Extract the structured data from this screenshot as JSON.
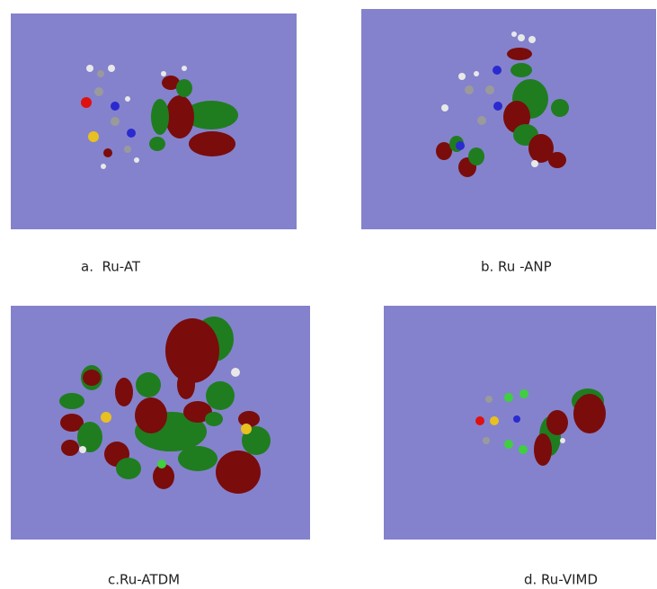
{
  "panels": [
    {
      "caption": "a.  Ru-AT"
    },
    {
      "caption": "b. Ru -ANP"
    },
    {
      "caption": "c.Ru-ATDM"
    },
    {
      "caption": "d. Ru-VIMD"
    }
  ]
}
